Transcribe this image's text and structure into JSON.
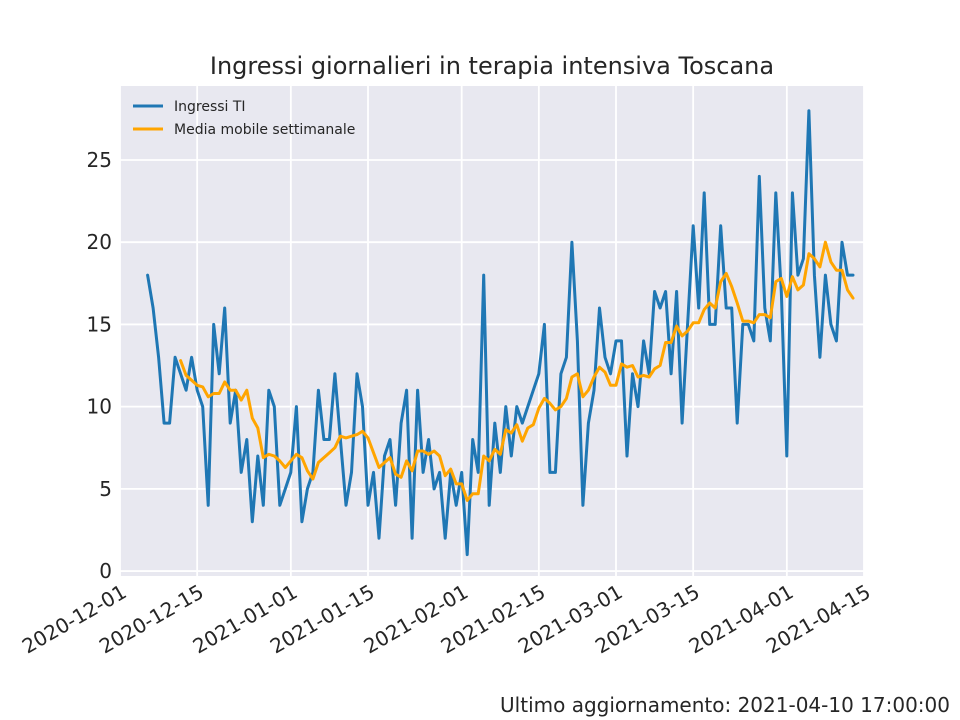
{
  "footer": "Ultimo aggiornamento: 2021-04-10 17:00:00",
  "colors": {
    "series1": "#1f77b4",
    "series2": "#ffa500",
    "plot_bg": "#e8e8f0",
    "grid": "#ffffff"
  },
  "chart_data": {
    "type": "line",
    "title": "Ingressi giornalieri in terapia intensiva Toscana",
    "xlabel": "",
    "ylabel": "",
    "x_start": "2020-12-06",
    "xlim": [
      "2020-12-01",
      "2021-04-15"
    ],
    "ylim": [
      -0.3,
      29.5
    ],
    "x_ticks": [
      "2020-12-01",
      "2020-12-15",
      "2021-01-01",
      "2021-01-15",
      "2021-02-01",
      "2021-02-15",
      "2021-03-01",
      "2021-03-15",
      "2021-04-01",
      "2021-04-15"
    ],
    "y_ticks": [
      0,
      5,
      10,
      15,
      20,
      25
    ],
    "grid": true,
    "legend_position": "top-left",
    "series": [
      {
        "name": "Ingressi TI",
        "values": [
          18,
          16,
          13,
          9,
          9,
          13,
          12,
          11,
          13,
          11,
          10,
          4,
          15,
          12,
          16,
          9,
          11,
          6,
          8,
          3,
          7,
          4,
          11,
          10,
          4,
          5,
          6,
          10,
          3,
          5,
          6,
          11,
          8,
          8,
          12,
          8,
          4,
          6,
          12,
          10,
          4,
          6,
          2,
          7,
          8,
          4,
          9,
          11,
          2,
          11,
          6,
          8,
          5,
          6,
          2,
          6,
          4,
          6,
          1,
          8,
          6,
          18,
          4,
          9,
          6,
          10,
          7,
          10,
          9,
          10,
          11,
          12,
          15,
          6,
          6,
          12,
          13,
          20,
          14,
          4,
          9,
          11,
          16,
          13,
          12,
          14,
          14,
          7,
          12,
          10,
          14,
          12,
          17,
          16,
          17,
          12,
          17,
          9,
          15,
          21,
          16,
          23,
          15,
          15,
          21,
          16,
          16,
          9,
          15,
          15,
          14,
          24,
          16,
          14,
          23,
          17,
          7,
          23,
          18,
          19,
          28,
          18,
          13,
          18,
          15,
          14,
          20,
          18,
          18
        ]
      },
      {
        "name": "Media mobile settimanale",
        "values": [
          null,
          null,
          null,
          null,
          null,
          null,
          12.8,
          11.9,
          11.6,
          11.3,
          11.2,
          10.6,
          10.8,
          10.8,
          11.5,
          11,
          11,
          10.4,
          11,
          9.3,
          8.7,
          6.9,
          7.1,
          7,
          6.7,
          6.3,
          6.7,
          7.1,
          6.9,
          6.1,
          5.6,
          6.6,
          6.9,
          7.2,
          7.5,
          8.2,
          8.1,
          8.2,
          8.3,
          8.5,
          8.1,
          7.2,
          6.3,
          6.6,
          6.9,
          5.9,
          5.7,
          6.7,
          6.1,
          7.3,
          7.3,
          7.1,
          7.3,
          7,
          5.8,
          6.2,
          5.3,
          5.3,
          4.3,
          4.7,
          4.7,
          7,
          6.7,
          7.4,
          7.1,
          8.6,
          8.4,
          8.9,
          7.9,
          8.7,
          8.9,
          9.9,
          10.5,
          10.2,
          9.8,
          10,
          10.5,
          11.8,
          12,
          10.6,
          11,
          11.8,
          12.4,
          12.1,
          11.3,
          11.3,
          12.6,
          12.4,
          12.5,
          11.8,
          11.9,
          11.8,
          12.3,
          12.5,
          13.9,
          13.9,
          14.9,
          14.3,
          14.6,
          15.1,
          15.1,
          15.9,
          16.3,
          16,
          17.6,
          18.1,
          17.3,
          16.3,
          15.2,
          15.2,
          15.1,
          15.6,
          15.6,
          15.4,
          17.6,
          17.8,
          16.7,
          17.9,
          17.1,
          17.4,
          19.3,
          19,
          18.5,
          20,
          18.8,
          18.3,
          18.3,
          17.1,
          16.6
        ]
      }
    ]
  }
}
